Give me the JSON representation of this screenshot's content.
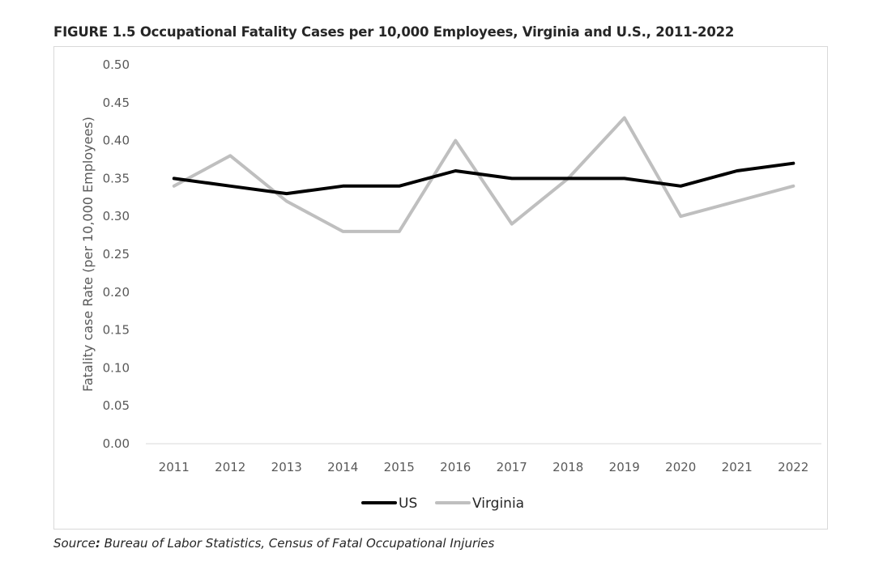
{
  "chart_data": {
    "type": "line",
    "title": "FIGURE 1.5 Occupational Fatality Cases per 10,000 Employees, Virginia and U.S., 2011-2022",
    "ylabel": "Fatality case Rate (per 10,000 Employees)",
    "xlabel": "",
    "categories": [
      "2011",
      "2012",
      "2013",
      "2014",
      "2015",
      "2016",
      "2017",
      "2018",
      "2019",
      "2020",
      "2021",
      "2022"
    ],
    "yticks": [
      "0.00",
      "0.05",
      "0.10",
      "0.15",
      "0.20",
      "0.25",
      "0.30",
      "0.35",
      "0.40",
      "0.45",
      "0.50"
    ],
    "ylim": [
      0,
      0.5
    ],
    "legend_position": "bottom",
    "series": [
      {
        "name": "US",
        "color": "#000000",
        "values": [
          0.35,
          0.34,
          0.33,
          0.34,
          0.34,
          0.36,
          0.35,
          0.35,
          0.35,
          0.34,
          0.36,
          0.37
        ]
      },
      {
        "name": "Virginia",
        "color": "#bfbfbf",
        "values": [
          0.34,
          0.38,
          0.32,
          0.28,
          0.28,
          0.4,
          0.29,
          0.35,
          0.43,
          0.3,
          0.32,
          0.34
        ]
      }
    ]
  },
  "source": {
    "prefix": "Source",
    "colon": ":",
    "text": " Bureau of Labor Statistics, Census of Fatal Occupational Injuries"
  }
}
